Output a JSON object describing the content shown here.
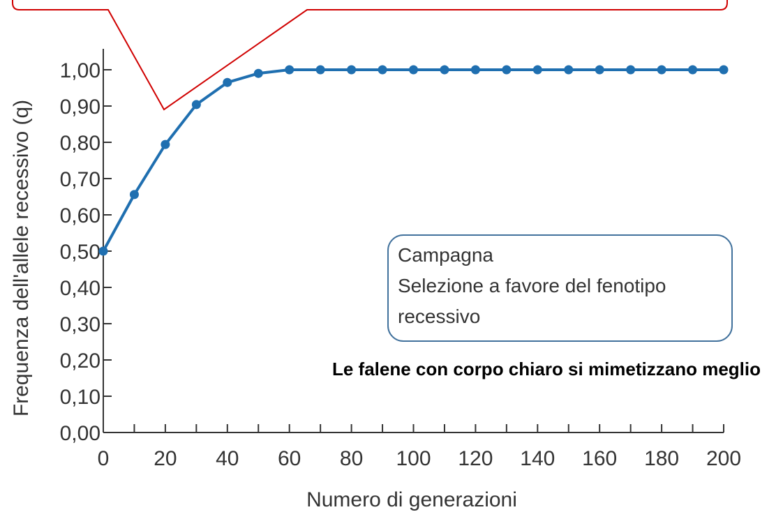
{
  "chart_data": {
    "type": "line",
    "x_label": "Numero di generazioni",
    "y_label": "Frequenza dell'allele recessivo (q)",
    "x": [
      0,
      10,
      20,
      30,
      40,
      50,
      60,
      70,
      80,
      90,
      100,
      110,
      120,
      130,
      140,
      150,
      160,
      170,
      180,
      190,
      200
    ],
    "series": [
      {
        "color": "#1f6fb0",
        "values": [
          0.5,
          0.656,
          0.794,
          0.904,
          0.965,
          0.99,
          1.0,
          1.0,
          1.0,
          1.0,
          1.0,
          1.0,
          1.0,
          1.0,
          1.0,
          1.0,
          1.0,
          1.0,
          1.0,
          1.0,
          1.0
        ]
      }
    ],
    "xlim": [
      0,
      200
    ],
    "xticks": [
      0,
      20,
      40,
      60,
      80,
      100,
      120,
      140,
      160,
      180,
      200
    ],
    "minor_xticks": [
      10,
      30,
      50,
      70,
      90,
      110,
      130,
      150,
      170,
      190
    ],
    "ylim": [
      0,
      1
    ],
    "yticks": [
      {
        "value": 0,
        "label": "0,00"
      },
      {
        "value": 0.1,
        "label": "0,10"
      },
      {
        "value": 0.2,
        "label": "0,20"
      },
      {
        "value": 0.3,
        "label": "0,30"
      },
      {
        "value": 0.4,
        "label": "0,40"
      },
      {
        "value": 0.5,
        "label": "0,50"
      },
      {
        "value": 0.6,
        "label": "0,60"
      },
      {
        "value": 0.7,
        "label": "0,70"
      },
      {
        "value": 0.8,
        "label": "0,80"
      },
      {
        "value": 0.9,
        "label": "0,90"
      },
      {
        "value": 1,
        "label": "1,00"
      }
    ],
    "annotations": {
      "box_lines": [
        "Campagna",
        "Selezione a favore del fenotipo",
        "recessivo"
      ],
      "caption": "Le falene con corpo chiaro si mimetizzano meglio"
    }
  }
}
